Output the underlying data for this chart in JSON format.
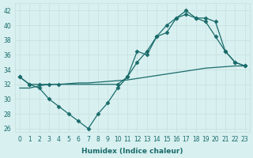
{
  "line1_x": [
    0,
    1,
    2,
    3,
    4,
    5,
    6,
    7,
    8,
    9,
    10,
    11,
    12,
    13,
    14,
    15,
    16,
    17,
    18,
    19,
    20,
    21,
    22,
    23
  ],
  "line1_y": [
    33,
    32,
    31.5,
    30,
    29,
    28,
    27,
    26,
    28,
    29.5,
    31.5,
    33,
    36.5,
    36,
    38.5,
    40,
    41,
    42,
    41,
    40.5,
    38.5,
    36.5,
    35,
    34.5
  ],
  "line2_x": [
    0,
    1,
    2,
    3,
    4,
    10,
    11,
    12,
    13,
    14,
    15,
    16,
    17,
    18,
    19,
    20,
    21,
    22,
    23
  ],
  "line2_y": [
    33,
    32,
    32,
    32,
    32,
    32,
    33,
    35,
    36.5,
    38.5,
    39,
    41,
    41.5,
    41,
    41,
    40.5,
    36.5,
    35,
    34.5
  ],
  "line3_x": [
    0,
    1,
    2,
    3,
    4,
    5,
    6,
    7,
    8,
    9,
    10,
    11,
    12,
    13,
    14,
    15,
    16,
    17,
    18,
    19,
    20,
    21,
    22,
    23
  ],
  "line3_y": [
    31.5,
    31.5,
    31.8,
    32.0,
    32.0,
    32.1,
    32.2,
    32.2,
    32.3,
    32.4,
    32.5,
    32.6,
    32.8,
    33.0,
    33.2,
    33.4,
    33.6,
    33.8,
    34.0,
    34.2,
    34.3,
    34.4,
    34.5,
    34.5
  ],
  "color": "#1a6b6b",
  "bg_color": "#d8f0f0",
  "grid_color": "#c8dede",
  "xlabel": "Humidex (Indice chaleur)",
  "xlim": [
    -0.5,
    23.5
  ],
  "ylim": [
    25.5,
    43.0
  ],
  "yticks": [
    26,
    28,
    30,
    32,
    34,
    36,
    38,
    40,
    42
  ],
  "xticks": [
    0,
    1,
    2,
    3,
    4,
    5,
    6,
    7,
    8,
    9,
    10,
    11,
    12,
    13,
    14,
    15,
    16,
    17,
    18,
    19,
    20,
    21,
    22,
    23
  ],
  "marker": "D",
  "markersize": 2.5,
  "linewidth": 0.9,
  "tick_fontsize": 5.5,
  "xlabel_fontsize": 6.5
}
